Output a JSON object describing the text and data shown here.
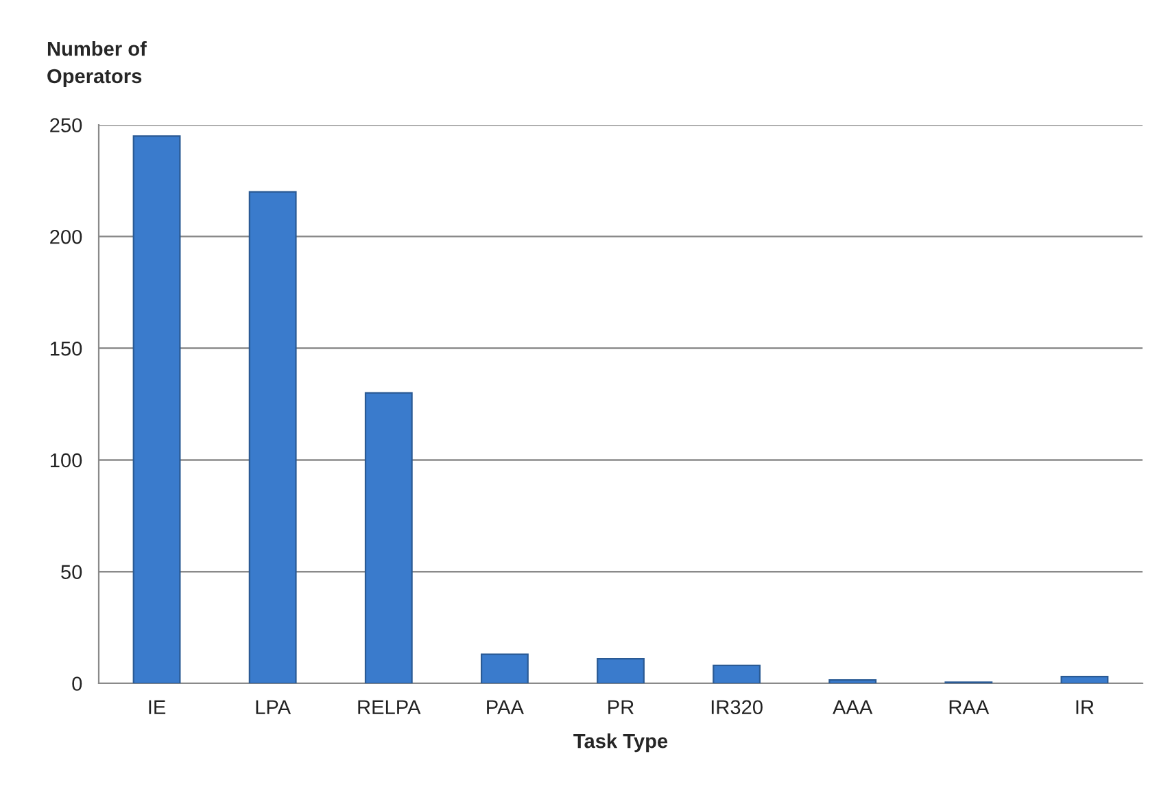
{
  "chart_data": {
    "type": "bar",
    "ylabel": "Number of\nOperators",
    "xlabel": "Task Type",
    "categories": [
      "IE",
      "LPA",
      "RELPA",
      "PAA",
      "PR",
      "IR320",
      "AAA",
      "RAA",
      "IR"
    ],
    "values": [
      245,
      220,
      130,
      13,
      11,
      8,
      1.5,
      0.5,
      3
    ],
    "color": "#3a7bcc",
    "ylim": [
      0,
      250
    ],
    "yticks": [
      0,
      50,
      100,
      150,
      200,
      250
    ],
    "grid": "y",
    "legend": false
  }
}
